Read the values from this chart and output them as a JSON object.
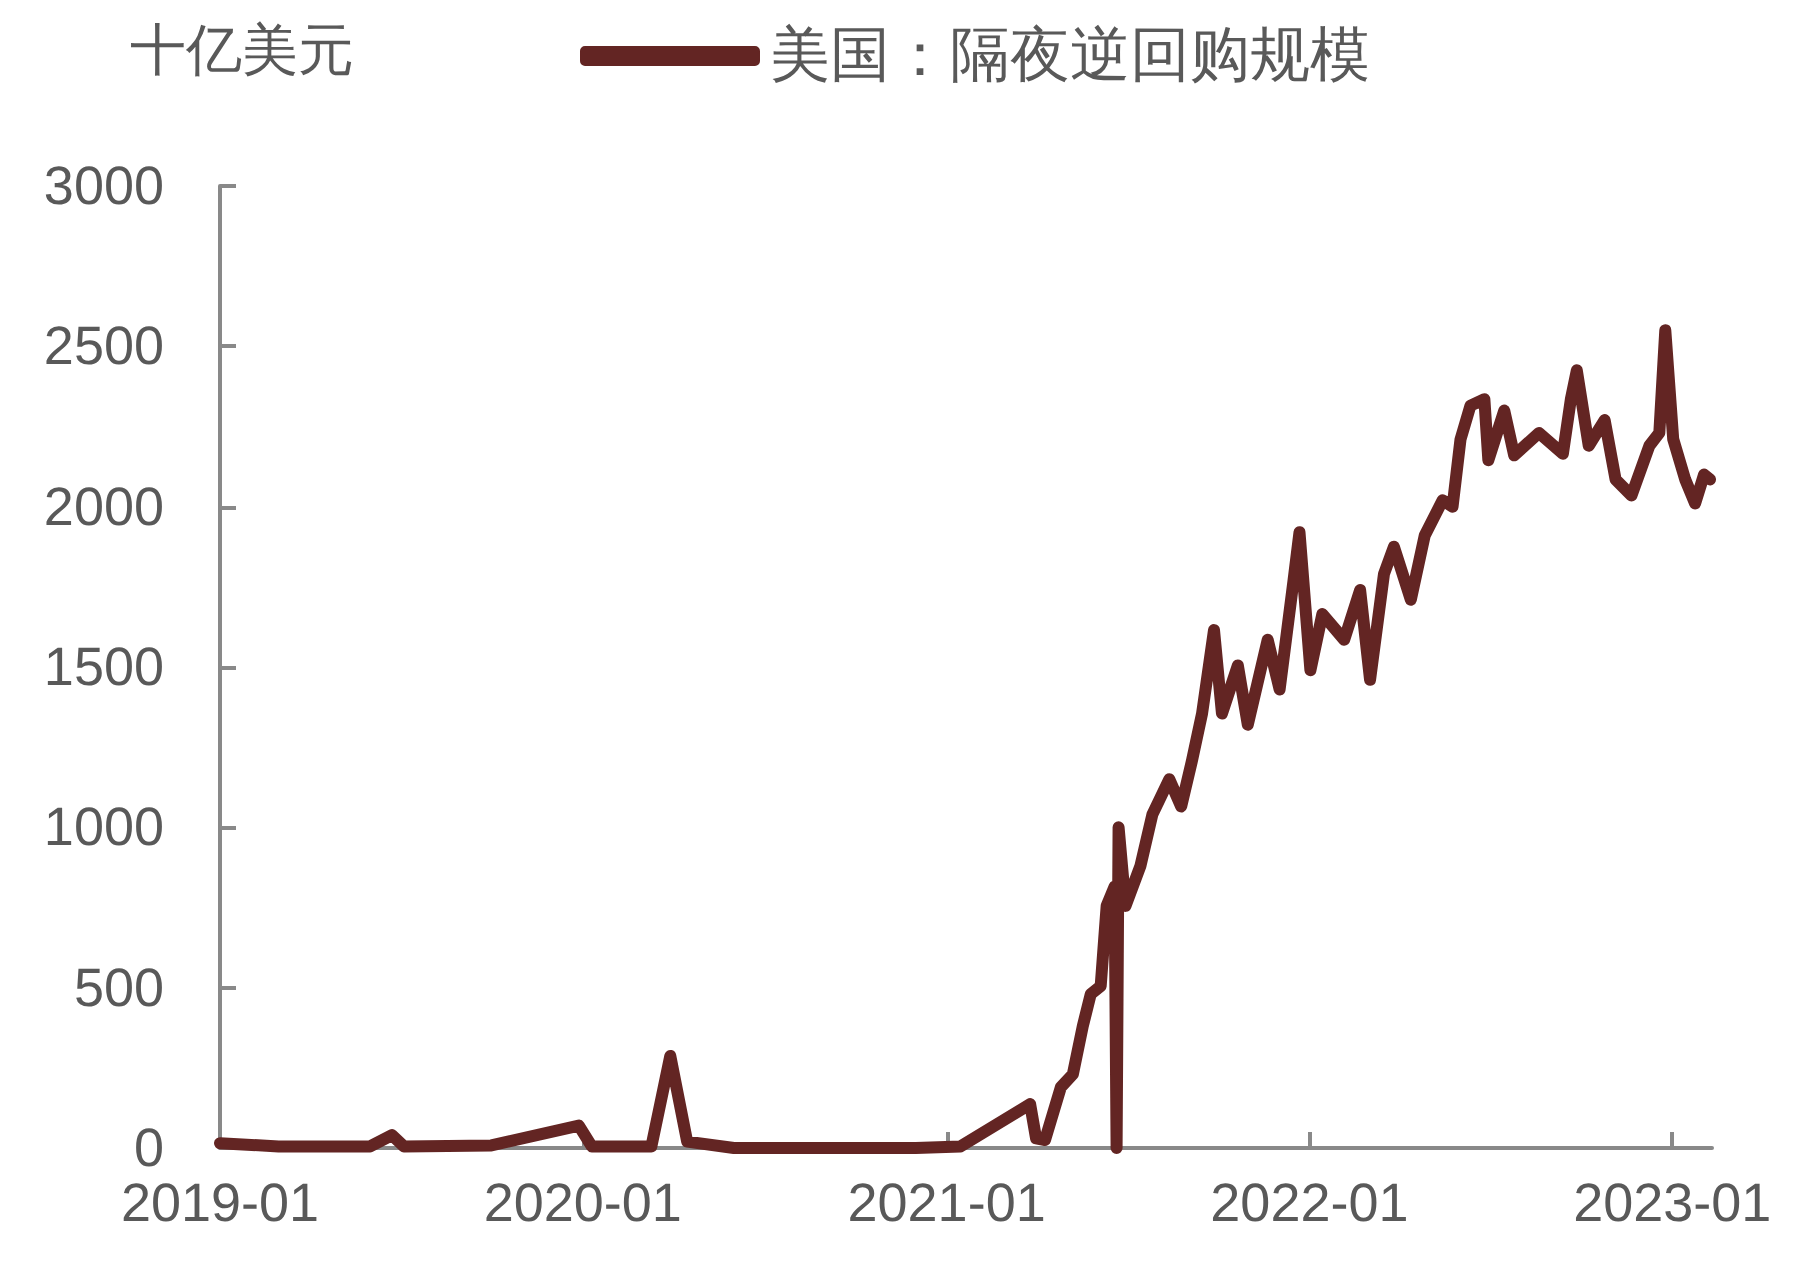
{
  "chart_data": {
    "type": "line",
    "ylabel": "十亿美元",
    "legend": "top",
    "x": [
      "2019-01-01",
      "2019-03-01",
      "2019-06-01",
      "2019-06-23",
      "2019-07-05",
      "2019-10-01",
      "2019-12-28",
      "2020-01-10",
      "2020-03-10",
      "2020-03-29",
      "2020-04-15",
      "2020-06-01",
      "2020-12-01",
      "2021-01-15",
      "2021-03-26",
      "2021-04-01",
      "2021-04-10",
      "2021-04-26",
      "2021-05-08",
      "2021-05-18",
      "2021-05-26",
      "2021-06-05",
      "2021-06-11",
      "2021-06-19",
      "2021-06-21",
      "2021-06-23",
      "2021-06-30",
      "2021-07-15",
      "2021-07-27",
      "2021-08-13",
      "2021-08-25",
      "2021-09-05",
      "2021-09-15",
      "2021-09-27",
      "2021-10-05",
      "2021-10-21",
      "2021-10-31",
      "2021-11-20",
      "2021-12-02",
      "2021-12-16",
      "2021-12-22",
      "2022-01-02",
      "2022-01-14",
      "2022-02-05",
      "2022-02-21",
      "2022-03-03",
      "2022-03-17",
      "2022-03-27",
      "2022-04-13",
      "2022-04-27",
      "2022-05-15",
      "2022-05-25",
      "2022-06-02",
      "2022-06-12",
      "2022-06-26",
      "2022-06-30",
      "2022-07-16",
      "2022-07-26",
      "2022-08-20",
      "2022-09-13",
      "2022-09-21",
      "2022-09-27",
      "2022-10-09",
      "2022-10-25",
      "2022-11-05",
      "2022-11-21",
      "2022-12-09",
      "2022-12-19",
      "2022-12-25",
      "2023-01-02",
      "2023-01-14",
      "2023-01-24",
      "2023-02-02",
      "2023-02-08"
    ],
    "series": [
      {
        "name": "美国：隔夜逆回购规模",
        "color": "#632523",
        "values": [
          15,
          5,
          5,
          40,
          5,
          8,
          70,
          5,
          5,
          287,
          20,
          0,
          0,
          5,
          137,
          30,
          25,
          190,
          230,
          380,
          480,
          505,
          755,
          815,
          0,
          1000,
          755,
          880,
          1040,
          1150,
          1065,
          1210,
          1355,
          1615,
          1355,
          1505,
          1320,
          1585,
          1430,
          1770,
          1920,
          1490,
          1665,
          1585,
          1740,
          1460,
          1790,
          1875,
          1710,
          1910,
          2020,
          2000,
          2210,
          2315,
          2335,
          2145,
          2300,
          2160,
          2230,
          2165,
          2335,
          2425,
          2190,
          2270,
          2085,
          2035,
          2190,
          2230,
          2550,
          2210,
          2085,
          2010,
          2100,
          2085
        ]
      }
    ],
    "ylim": [
      0,
      3000
    ],
    "yticks": [
      0,
      500,
      1000,
      1500,
      2000,
      2500,
      3000
    ],
    "xlim": [
      "2019-01-01",
      "2023-02-10"
    ],
    "xticks": [
      "2019-01",
      "2020-01",
      "2021-01",
      "2022-01",
      "2023-01"
    ],
    "grid": false,
    "marker": "none",
    "line_style": "solid"
  }
}
